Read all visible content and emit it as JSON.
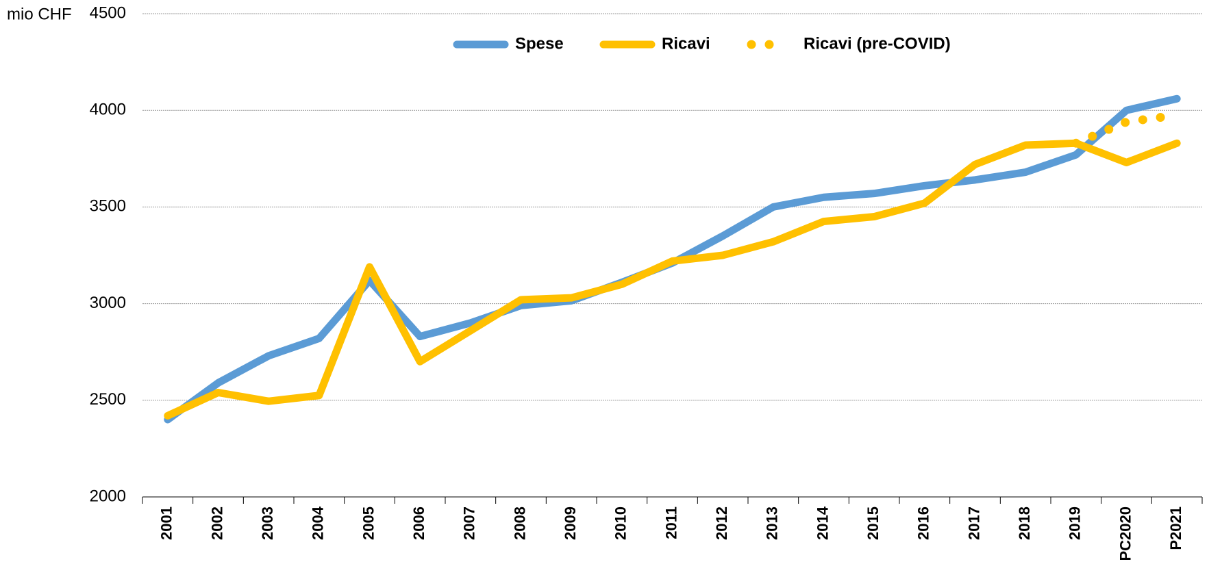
{
  "chart_data": {
    "type": "line",
    "y_label": "mio CHF",
    "categories": [
      "2001",
      "2002",
      "2003",
      "2004",
      "2005",
      "2006",
      "2007",
      "2008",
      "2009",
      "2010",
      "2011",
      "2012",
      "2013",
      "2014",
      "2015",
      "2016",
      "2017",
      "2018",
      "2019",
      "PC2020",
      "P2021"
    ],
    "series": [
      {
        "name": "Spese",
        "color": "#5b9bd5",
        "style": "solid",
        "values": [
          2400,
          2590,
          2730,
          2820,
          3120,
          2830,
          2900,
          2990,
          3015,
          3110,
          3210,
          3350,
          3500,
          3550,
          3570,
          3610,
          3640,
          3680,
          3770,
          4000,
          4060
        ]
      },
      {
        "name": "Ricavi",
        "color": "#ffc000",
        "style": "solid",
        "values": [
          2420,
          2540,
          2495,
          2525,
          3190,
          2700,
          2860,
          3020,
          3030,
          3100,
          3220,
          3250,
          3320,
          3425,
          3450,
          3520,
          3720,
          3820,
          3830,
          3730,
          3830
        ]
      },
      {
        "name": "Ricavi (pre-COVID)",
        "color": "#ffc000",
        "style": "dotted",
        "values": [
          null,
          null,
          null,
          null,
          null,
          null,
          null,
          null,
          null,
          null,
          null,
          null,
          null,
          null,
          null,
          null,
          null,
          null,
          3830,
          3940,
          3975
        ]
      }
    ],
    "ylim": [
      2000,
      4500
    ],
    "yticks": [
      2000,
      2500,
      3000,
      3500,
      4000,
      4500
    ],
    "grid": true,
    "legend": "top"
  }
}
